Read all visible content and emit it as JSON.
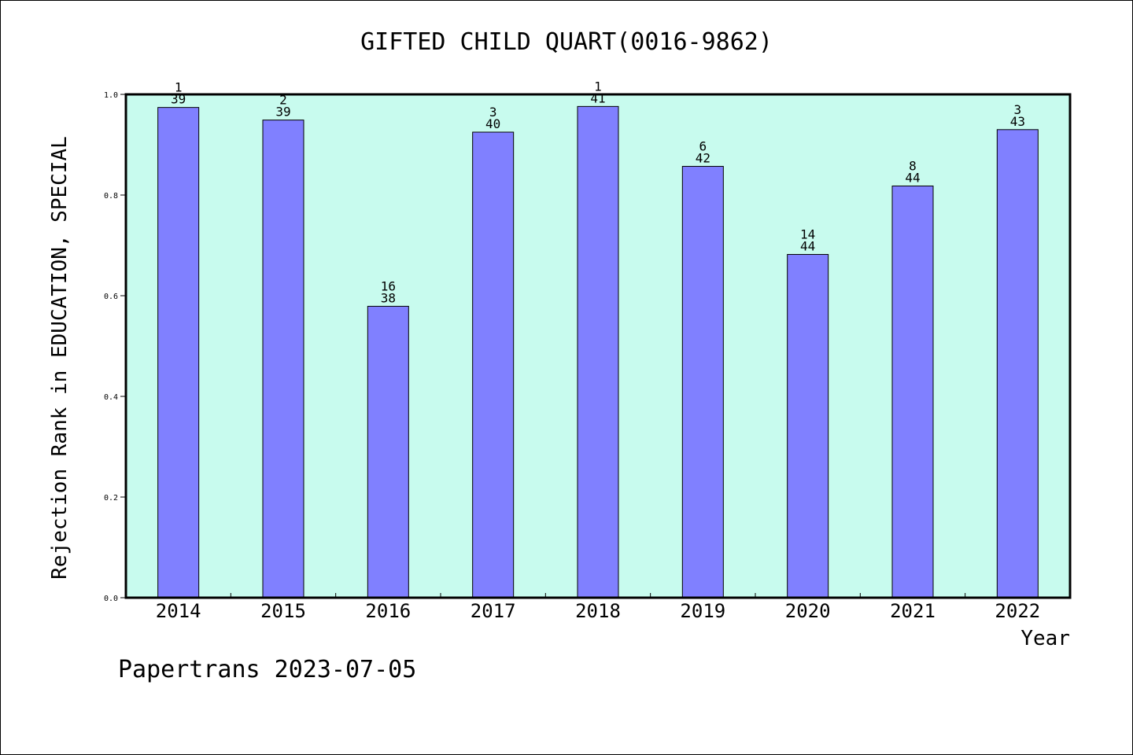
{
  "chart_data": {
    "type": "bar",
    "title": "GIFTED CHILD QUART(0016-9862)",
    "xlabel": "Year",
    "ylabel": "Rejection Rank in EDUCATION, SPECIAL",
    "categories": [
      "2014",
      "2015",
      "2016",
      "2017",
      "2018",
      "2019",
      "2020",
      "2021",
      "2022"
    ],
    "values": [
      0.974,
      0.949,
      0.579,
      0.925,
      0.976,
      0.857,
      0.682,
      0.818,
      0.93
    ],
    "rank_labels": [
      "1",
      "2",
      "16",
      "3",
      "1",
      "6",
      "14",
      "8",
      "3"
    ],
    "total_labels": [
      "39",
      "39",
      "38",
      "40",
      "41",
      "42",
      "44",
      "44",
      "43"
    ],
    "ylim": [
      0,
      1
    ],
    "yticks": [
      "0.0",
      "0.2",
      "0.4",
      "0.6",
      "0.8",
      "1.0"
    ],
    "grid": false,
    "colors": {
      "plot_background": "#c8fbee",
      "bar_fill": "#8080ff",
      "bar_stroke": "#000000",
      "axis": "#000000"
    }
  },
  "footer": "Papertrans 2023-07-05"
}
